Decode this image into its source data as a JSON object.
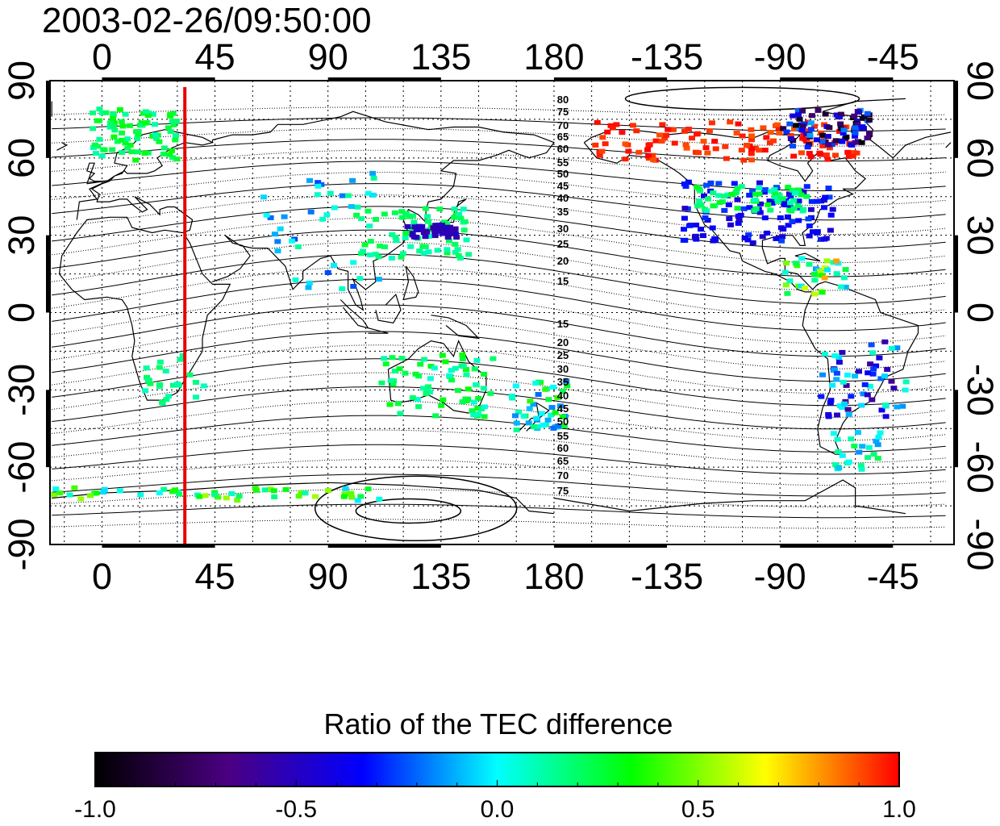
{
  "title": "2003-02-26/09:50:00",
  "map": {
    "lon_ticks": [
      "0",
      "45",
      "90",
      "135",
      "180",
      "-135",
      "-90",
      "-45"
    ],
    "lat_ticks": [
      "90",
      "60",
      "30",
      "0",
      "-30",
      "-60",
      "-90"
    ],
    "north_contour_labels": [
      "80",
      "75",
      "70",
      "65",
      "60",
      "55",
      "50",
      "45",
      "40",
      "35",
      "30",
      "25",
      "20",
      "15"
    ],
    "south_contour_labels": [
      "15",
      "20",
      "25",
      "30",
      "35",
      "40",
      "45",
      "50",
      "55",
      "60",
      "65",
      "70",
      "75"
    ],
    "terminator_longitude": 33
  },
  "colorbar": {
    "title": "Ratio of the TEC difference",
    "tick_labels": [
      "-1.0",
      "-0.5",
      "0.0",
      "0.5",
      "1.0"
    ],
    "range": [
      -1.0,
      1.0
    ],
    "colormap": [
      "#000000",
      "#4b0082",
      "#0000ff",
      "#00ffff",
      "#00ff00",
      "#ffff00",
      "#ff0000"
    ]
  },
  "colors": {
    "terminator": "#e60000",
    "frame": "#000000",
    "grid": "#000000"
  }
}
